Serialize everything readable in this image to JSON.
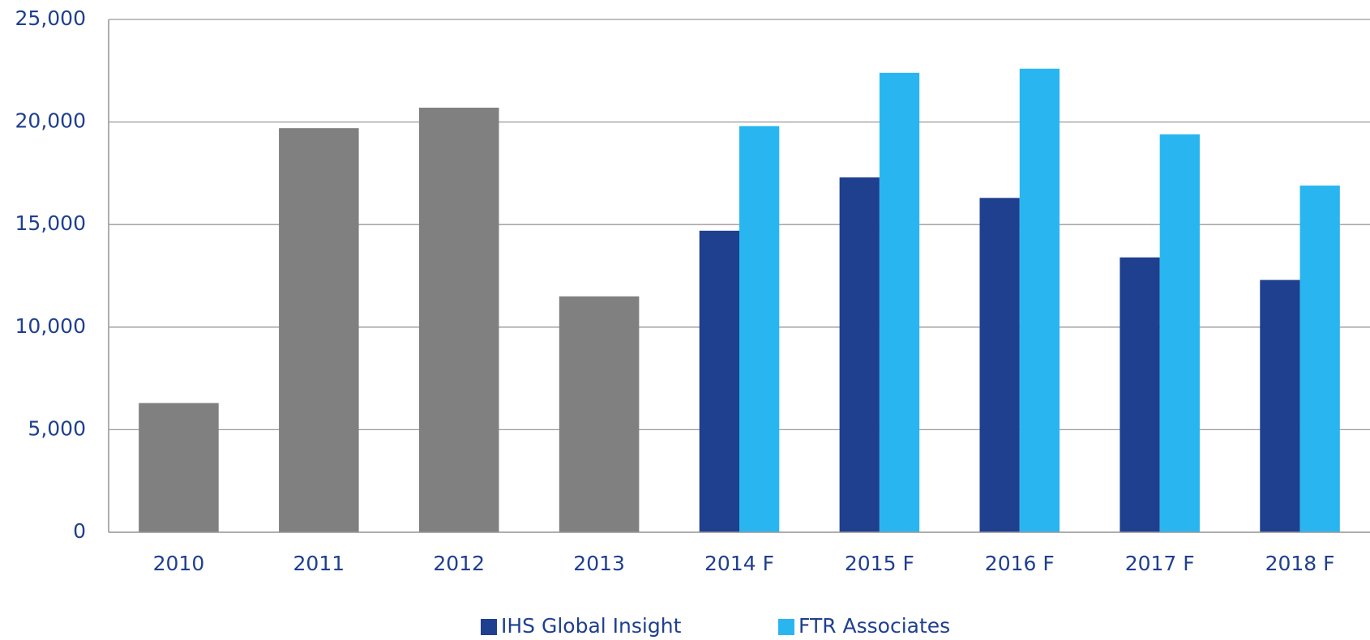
{
  "chart_data": {
    "type": "bar",
    "categories": [
      "2010",
      "2011",
      "2012",
      "2013",
      "2014 F",
      "2015 F",
      "2016 F",
      "2017 F",
      "2018 F"
    ],
    "series": [
      {
        "color": "#808080",
        "values": [
          6300,
          19700,
          20700,
          11500,
          null,
          null,
          null,
          null,
          null
        ]
      },
      {
        "name": "IHS Global Insight",
        "color": "#1f3f8f",
        "values": [
          null,
          null,
          null,
          null,
          14700,
          17300,
          16300,
          13400,
          12300
        ]
      },
      {
        "name": "FTR Associates",
        "color": "#29b6f0",
        "values": [
          null,
          null,
          null,
          null,
          19800,
          22400,
          22600,
          19400,
          16900
        ]
      }
    ],
    "ylim": [
      0,
      25000
    ],
    "yticks": [
      0,
      {
        "value": 5000,
        "label": "5,000"
      },
      {
        "value": 10000,
        "label": "10,000"
      },
      {
        "value": 15000,
        "label": "15,000"
      },
      {
        "value": 20000,
        "label": "20,000"
      },
      {
        "value": 25000,
        "label": "25,000"
      }
    ],
    "grid": true,
    "legend": "bottom"
  }
}
